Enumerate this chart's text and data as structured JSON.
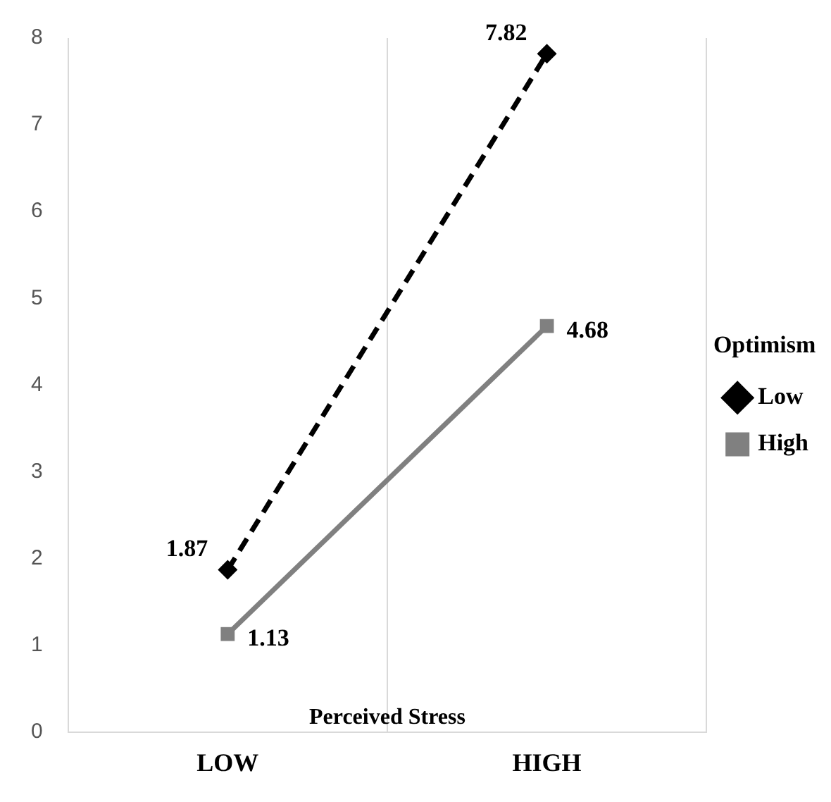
{
  "chart_data": {
    "type": "line",
    "xlabel": "Perceived Stress",
    "legend_title": "Optimism",
    "categories": [
      "LOW",
      "HIGH"
    ],
    "series": [
      {
        "name": "Low",
        "color": "#000000",
        "values": [
          1.87,
          7.82
        ],
        "line_style": "dashed",
        "marker": "diamond"
      },
      {
        "name": "High",
        "color": "#808080",
        "values": [
          1.13,
          4.68
        ],
        "line_style": "solid",
        "marker": "square"
      }
    ],
    "ylim": [
      0,
      8
    ],
    "yticks": [
      0,
      1,
      2,
      3,
      4,
      5,
      6,
      7,
      8
    ],
    "grid": "x",
    "legend": "right",
    "data_labels": true
  }
}
